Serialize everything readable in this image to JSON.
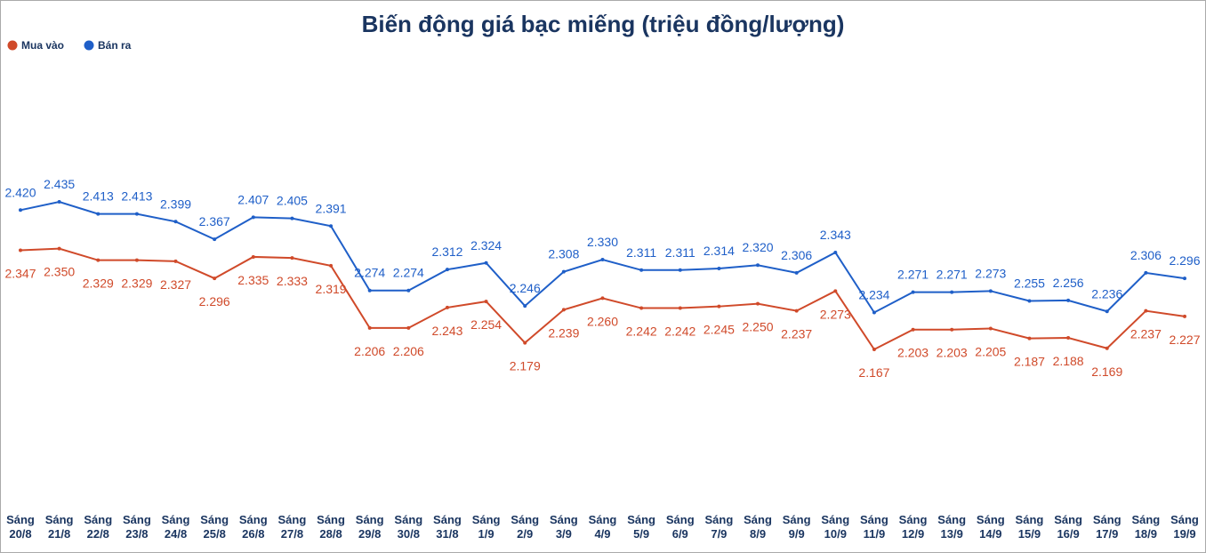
{
  "chart_data": {
    "type": "line",
    "title": "Biến động giá bạc miếng (triệu đồng/lượng)",
    "categories": [
      "Sáng 20/8",
      "Sáng 21/8",
      "Sáng 22/8",
      "Sáng 23/8",
      "Sáng 24/8",
      "Sáng 25/8",
      "Sáng 26/8",
      "Sáng 27/8",
      "Sáng 28/8",
      "Sáng 29/8",
      "Sáng 30/8",
      "Sáng 31/8",
      "Sáng 1/9",
      "Sáng 2/9",
      "Sáng 3/9",
      "Sáng 4/9",
      "Sáng 5/9",
      "Sáng 6/9",
      "Sáng 7/9",
      "Sáng 8/9",
      "Sáng 9/9",
      "Sáng 10/9",
      "Sáng 11/9",
      "Sáng 12/9",
      "Sáng 13/9",
      "Sáng 14/9",
      "Sáng 15/9",
      "Sáng 16/9",
      "Sáng 17/9",
      "Sáng 18/9",
      "Sáng 19/9"
    ],
    "series": [
      {
        "name": "Mua vào",
        "color": "#d04a2a",
        "values": [
          2.347,
          2.35,
          2.329,
          2.329,
          2.327,
          2.296,
          2.335,
          2.333,
          2.319,
          2.206,
          2.206,
          2.243,
          2.254,
          2.179,
          2.239,
          2.26,
          2.242,
          2.242,
          2.245,
          2.25,
          2.237,
          2.273,
          2.167,
          2.203,
          2.203,
          2.205,
          2.187,
          2.188,
          2.169,
          2.237,
          2.227
        ],
        "value_labels": [
          "2.347",
          "2.350",
          "2.329",
          "2.329",
          "2.327",
          "2.296",
          "2.335",
          "2.333",
          "2.319",
          "2.206",
          "2.206",
          "2.243",
          "2.254",
          "2.179",
          "2.239",
          "2.260",
          "2.242",
          "2.242",
          "2.245",
          "2.250",
          "2.237",
          "2.273",
          "2.167",
          "2.203",
          "2.203",
          "2.205",
          "2.187",
          "2.188",
          "2.169",
          "2.237",
          "2.227"
        ]
      },
      {
        "name": "Bán ra",
        "color": "#1f5fc8",
        "values": [
          2.42,
          2.435,
          2.413,
          2.413,
          2.399,
          2.367,
          2.407,
          2.405,
          2.391,
          2.274,
          2.274,
          2.312,
          2.324,
          2.246,
          2.308,
          2.33,
          2.311,
          2.311,
          2.314,
          2.32,
          2.306,
          2.343,
          2.234,
          2.271,
          2.271,
          2.273,
          2.255,
          2.256,
          2.236,
          2.306,
          2.296
        ],
        "value_labels": [
          "2.420",
          "2.435",
          "2.413",
          "2.413",
          "2.399",
          "2.367",
          "2.407",
          "2.405",
          "2.391",
          "2.274",
          "2.274",
          "2.312",
          "2.324",
          "2.246",
          "2.308",
          "2.330",
          "2.311",
          "2.311",
          "2.314",
          "2.320",
          "2.306",
          "2.343",
          "2.234",
          "2.271",
          "2.271",
          "2.273",
          "2.255",
          "2.256",
          "2.236",
          "2.306",
          "2.296"
        ]
      }
    ]
  }
}
